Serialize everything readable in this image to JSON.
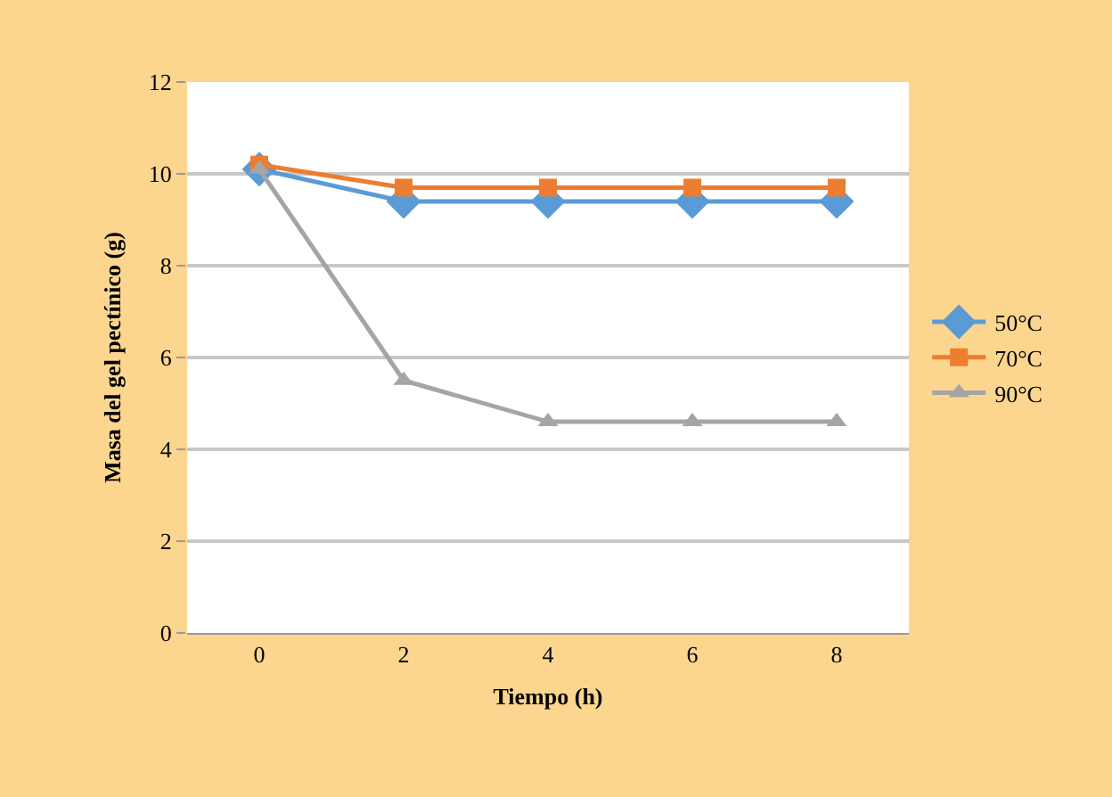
{
  "chart_data": {
    "type": "line",
    "xlabel": "Tiempo (h)",
    "ylabel": "Masa del gel pectínico (g)",
    "categories": [
      "0",
      "2",
      "4",
      "6",
      "8"
    ],
    "series": [
      {
        "name": "50°C",
        "color": "#5b9bd5",
        "marker": "diamond",
        "values": [
          10.1,
          9.4,
          9.4,
          9.4,
          9.4
        ]
      },
      {
        "name": "70°C",
        "color": "#ed7d31",
        "marker": "square",
        "values": [
          10.2,
          9.7,
          9.7,
          9.7,
          9.7
        ]
      },
      {
        "name": "90°C",
        "color": "#a5a5a5",
        "marker": "triangle",
        "values": [
          10.1,
          5.5,
          4.6,
          4.6,
          4.6
        ]
      }
    ],
    "ylim": [
      0,
      12
    ],
    "yticks": [
      0,
      2,
      4,
      6,
      8,
      10,
      12
    ],
    "grid": "y",
    "legend": "right"
  }
}
